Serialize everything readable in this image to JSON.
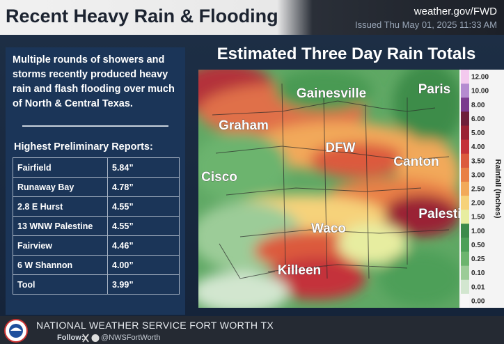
{
  "header": {
    "title": "Recent Heavy Rain & Flooding",
    "site": "weather.gov/FWD",
    "issued": "Issued Thu May 01, 2025 11:33 AM"
  },
  "summary": {
    "text": "Multiple rounds of showers and storms recently produced heavy rain and flash flooding over much of North & Central Texas.",
    "reports_title": "Highest Preliminary Reports:",
    "reports": [
      [
        "Fairfield",
        "5.84”"
      ],
      [
        "Runaway Bay",
        "4.78”"
      ],
      [
        "2.8 E Hurst",
        "4.55”"
      ],
      [
        "13 WNW Palestine",
        "4.55”"
      ],
      [
        "Fairview",
        "4.46”"
      ],
      [
        "6 W Shannon",
        "4.00”"
      ],
      [
        "Tool",
        "3.99”"
      ]
    ]
  },
  "map": {
    "title": "Estimated Three Day Rain Totals",
    "cities": [
      "Gainesville",
      "Paris",
      "Graham",
      "DFW",
      "Canton",
      "Cisco",
      "Palestine",
      "Waco",
      "Killeen"
    ],
    "legend_title": "Rainfall (inches)",
    "legend_labels": [
      "12.00",
      "10.00",
      "8.00",
      "6.00",
      "5.00",
      "4.00",
      "3.50",
      "3.00",
      "2.50",
      "2.00",
      "1.50",
      "1.00",
      "0.50",
      "0.25",
      "0.10",
      "0.01",
      "0.00"
    ],
    "legend_colors": [
      "#f3c9ee",
      "#b58bd0",
      "#7a3b8e",
      "#6e1f3a",
      "#9a2234",
      "#c4323a",
      "#dc5a3e",
      "#e98046",
      "#f2a95a",
      "#f6d27a",
      "#e7eda0",
      "#3c8a4a",
      "#4d9f58",
      "#6cb46e",
      "#9ccc98",
      "#d2e6cf",
      "#f7f7f7"
    ]
  },
  "footer": {
    "office": "NATIONAL WEATHER SERVICE FORT WORTH TX",
    "follow": "Follow:",
    "handle": "@NWSFortWorth"
  }
}
